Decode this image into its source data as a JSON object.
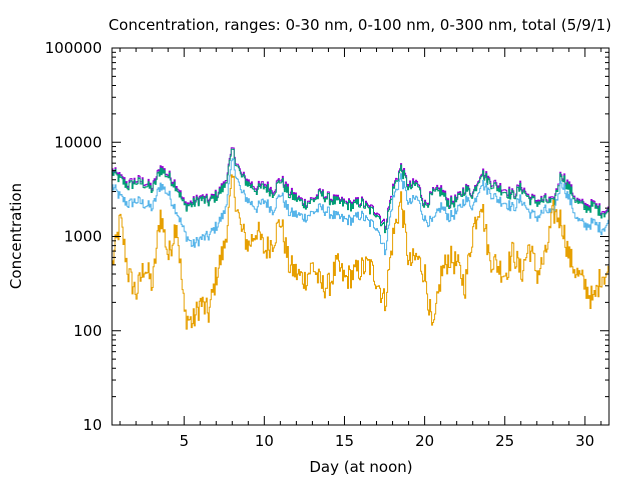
{
  "chart_data": {
    "type": "line",
    "title": "Concentration, ranges: 0-30 nm, 0-100 nm, 0-300 nm, total (5/9/1)",
    "xlabel": "Day (at noon)",
    "ylabel": "Concentration",
    "xlim": [
      0.5,
      31.5
    ],
    "ylim": [
      10,
      100000
    ],
    "yscale": "log",
    "grid": false,
    "legend": "none",
    "xticks": [
      5,
      10,
      15,
      20,
      25,
      30
    ],
    "xtick_labels": [
      "5",
      "10",
      "15",
      "20",
      "25",
      "30"
    ],
    "yticks": [
      10,
      100,
      1000,
      10000,
      100000
    ],
    "ytick_labels": [
      "10",
      "100",
      "1000",
      "10000",
      "100000"
    ],
    "x": [
      0.5,
      1,
      1.5,
      2,
      2.5,
      3,
      3.5,
      4,
      4.5,
      5,
      5.5,
      6,
      6.5,
      7,
      7.5,
      8,
      8.5,
      9,
      9.5,
      10,
      10.5,
      11,
      11.5,
      12,
      12.5,
      13,
      13.5,
      14,
      14.5,
      15,
      15.5,
      16,
      16.5,
      17,
      17.5,
      18,
      18.5,
      19,
      19.5,
      20,
      20.5,
      21,
      21.5,
      22,
      22.5,
      23,
      23.5,
      24,
      24.5,
      25,
      25.5,
      26,
      26.5,
      27,
      27.5,
      28,
      28.5,
      29,
      29.5,
      30,
      30.5,
      31,
      31.5
    ],
    "series": [
      {
        "name": "total",
        "color": "#9400d3",
        "values": [
          5000,
          4200,
          3600,
          4000,
          3800,
          3300,
          5500,
          4500,
          3600,
          2200,
          2300,
          2600,
          2400,
          2800,
          3600,
          8500,
          4600,
          3800,
          3300,
          3600,
          3100,
          4200,
          3000,
          2600,
          2300,
          2500,
          2900,
          2600,
          2400,
          2300,
          2200,
          2400,
          2000,
          1900,
          1300,
          3300,
          5500,
          3400,
          3800,
          2200,
          2900,
          3200,
          2300,
          2500,
          3300,
          2900,
          5000,
          4000,
          3500,
          3200,
          2800,
          3500,
          2600,
          2400,
          2500,
          2300,
          4800,
          3400,
          2400,
          2100,
          2200,
          1900,
          1900
        ]
      },
      {
        "name": "0-300 nm",
        "color": "#009e73",
        "values": [
          4800,
          4000,
          3400,
          3800,
          3600,
          3100,
          5200,
          4300,
          3400,
          2100,
          2200,
          2500,
          2300,
          2700,
          3400,
          8200,
          4400,
          3600,
          3100,
          3400,
          2900,
          4000,
          2800,
          2500,
          2200,
          2400,
          2800,
          2500,
          2300,
          2200,
          2100,
          2300,
          1900,
          1800,
          1200,
          3100,
          5300,
          3200,
          3600,
          2100,
          2800,
          3000,
          2200,
          2400,
          3200,
          2800,
          4800,
          3800,
          3300,
          3000,
          2700,
          3300,
          2500,
          2300,
          2400,
          2200,
          4600,
          3200,
          2300,
          2000,
          2100,
          1800,
          1800
        ]
      },
      {
        "name": "0-100 nm",
        "color": "#56b4e9",
        "values": [
          3400,
          2600,
          2200,
          2400,
          2200,
          2000,
          3600,
          2800,
          1900,
          1100,
          800,
          950,
          1000,
          1300,
          1800,
          6500,
          3000,
          2400,
          2000,
          2400,
          1900,
          2900,
          1800,
          1700,
          1600,
          1800,
          2000,
          1800,
          1600,
          1500,
          1500,
          1700,
          1400,
          1300,
          700,
          2500,
          4300,
          2200,
          2600,
          1500,
          1400,
          2100,
          1600,
          1800,
          2500,
          2100,
          3800,
          3000,
          2500,
          2300,
          2000,
          2500,
          1800,
          1600,
          1900,
          1700,
          3900,
          2500,
          1500,
          1300,
          1400,
          1200,
          1400
        ]
      },
      {
        "name": "0-30 nm",
        "color": "#e69f00",
        "values": [
          500,
          1500,
          400,
          250,
          500,
          300,
          1800,
          600,
          1500,
          150,
          120,
          200,
          150,
          400,
          800,
          4000,
          1200,
          800,
          1200,
          700,
          900,
          1500,
          500,
          400,
          350,
          500,
          300,
          300,
          500,
          350,
          400,
          450,
          500,
          350,
          200,
          1000,
          2500,
          500,
          600,
          400,
          90,
          400,
          600,
          500,
          300,
          1200,
          2500,
          600,
          500,
          400,
          700,
          400,
          800,
          400,
          600,
          1800,
          1500,
          600,
          400,
          300,
          200,
          400,
          400
        ]
      }
    ]
  }
}
